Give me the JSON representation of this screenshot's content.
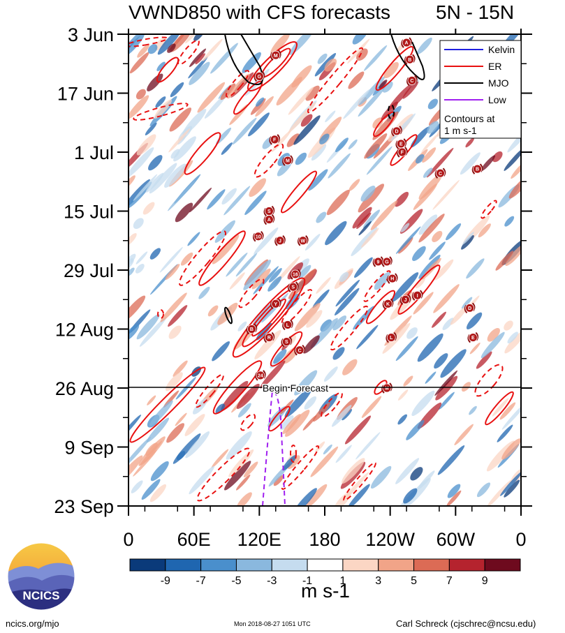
{
  "title_left": "VWND850 with CFS forecasts",
  "title_right": "5N - 15N",
  "chart_data": {
    "type": "heatmap",
    "title": "VWND850 with CFS forecasts",
    "region": "5N - 15N",
    "x_ticks": [
      "0",
      "60E",
      "120E",
      "180",
      "120W",
      "60W",
      "0"
    ],
    "y_ticks": [
      "3 Jun",
      "17 Jun",
      "1 Jul",
      "15 Jul",
      "29 Jul",
      "12 Aug",
      "26 Aug",
      "9 Sep",
      "23 Sep"
    ],
    "forecast_label": "Begin Forecast",
    "forecast_start": "26 Aug",
    "legend": [
      {
        "name": "Kelvin",
        "color": "#2020e0",
        "style": "solid"
      },
      {
        "name": "ER",
        "color": "#e81010",
        "style": "solid"
      },
      {
        "name": "MJO",
        "color": "#000000",
        "style": "solid"
      },
      {
        "name": "Low",
        "color": "#a020f0",
        "style": "solid"
      }
    ],
    "legend_note_1": "Contours at",
    "legend_note_2": "1 m s-1",
    "colorbar": {
      "labels": [
        "-9",
        "-7",
        "-5",
        "-3",
        "-1",
        "1",
        "3",
        "5",
        "7",
        "9"
      ],
      "colors": [
        "#0a3a7a",
        "#1f66b0",
        "#4a8fcc",
        "#8ab8de",
        "#c5dcef",
        "#ffffff",
        "#fbd6c4",
        "#f1a488",
        "#dc6b55",
        "#b5232e",
        "#6e0a1e"
      ],
      "units": "m s-1"
    },
    "storm_markers": [
      {
        "label": "M",
        "lon": 135,
        "date": "8 Jun"
      },
      {
        "label": "G",
        "lon": 120,
        "date": "13 Jun"
      },
      {
        "label": "A",
        "lon": 255,
        "date": "5 Jun"
      },
      {
        "label": "B",
        "lon": 258,
        "date": "9 Jun"
      },
      {
        "label": "C",
        "lon": 260,
        "date": "14 Jun"
      },
      {
        "label": "D",
        "lon": 246,
        "date": "26 Jun"
      },
      {
        "label": "E",
        "lon": 250,
        "date": "29 Jun"
      },
      {
        "label": "F",
        "lon": 251,
        "date": "1 Jul"
      },
      {
        "label": "F",
        "lon": 134,
        "date": "28 Jun"
      },
      {
        "label": "M",
        "lon": 146,
        "date": "3 Jul"
      },
      {
        "label": "C",
        "lon": 286,
        "date": "6 Jul"
      },
      {
        "label": "B",
        "lon": 320,
        "date": "5 Jul"
      },
      {
        "label": "S",
        "lon": 129,
        "date": "15 Jul"
      },
      {
        "label": "A",
        "lon": 129,
        "date": "17 Jul"
      },
      {
        "label": "10",
        "lon": 119,
        "date": "21 Jul"
      },
      {
        "label": "J",
        "lon": 139,
        "date": "22 Jul"
      },
      {
        "label": "W",
        "lon": 160,
        "date": "22 Jul"
      },
      {
        "label": "9",
        "lon": 229,
        "date": "27 Jul"
      },
      {
        "label": "G",
        "lon": 237,
        "date": "27 Jul"
      },
      {
        "label": "16",
        "lon": 153,
        "date": "30 Jul"
      },
      {
        "label": "H",
        "lon": 242,
        "date": "31 Jul"
      },
      {
        "label": "S",
        "lon": 151,
        "date": "2 Aug"
      },
      {
        "label": "I",
        "lon": 265,
        "date": "4 Aug"
      },
      {
        "label": "J",
        "lon": 254,
        "date": "5 Aug"
      },
      {
        "label": "Y",
        "lon": 135,
        "date": "6 Aug"
      },
      {
        "label": "K",
        "lon": 238,
        "date": "6 Aug"
      },
      {
        "label": "D",
        "lon": 313,
        "date": "7 Aug"
      },
      {
        "label": "L",
        "lon": 146,
        "date": "11 Aug"
      },
      {
        "label": "B",
        "lon": 113,
        "date": "12 Aug"
      },
      {
        "label": "R",
        "lon": 129,
        "date": "14 Aug"
      },
      {
        "label": "S",
        "lon": 145,
        "date": "15 Aug"
      },
      {
        "label": "L",
        "lon": 241,
        "date": "14 Aug"
      },
      {
        "label": "E",
        "lon": 316,
        "date": "14 Aug"
      },
      {
        "label": "C",
        "lon": 157,
        "date": "17 Aug"
      },
      {
        "label": "24",
        "lon": 121,
        "date": "23 Aug"
      },
      {
        "label": "M",
        "lon": 237,
        "date": "26 Aug"
      }
    ]
  },
  "footer": {
    "logo_text": "NCICS",
    "url": "ncics.org/mjo",
    "timestamp": "Mon 2018-08-27 1051 UTC",
    "author": "Carl Schreck (cjschrec@ncsu.edu)"
  }
}
